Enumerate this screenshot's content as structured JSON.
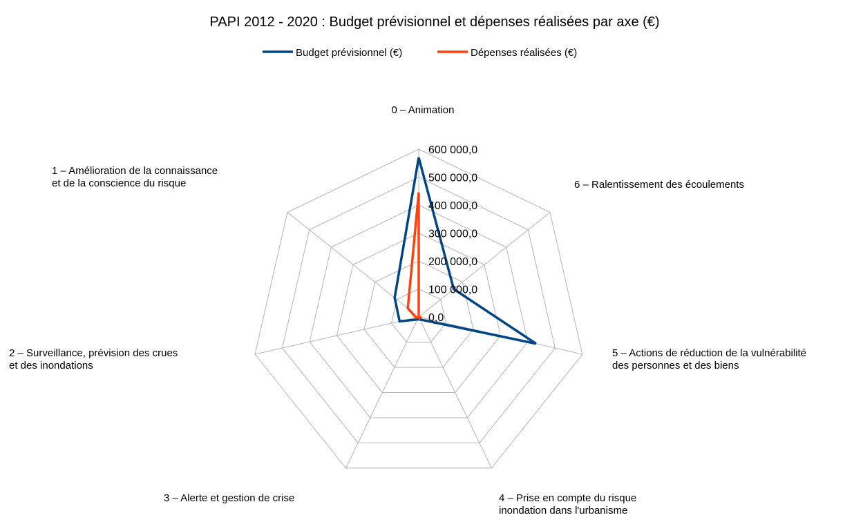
{
  "chart_data": {
    "type": "radar",
    "title": "PAPI 2012 - 2020 : Budget prévisionnel et dépenses réalisées par axe (€)",
    "legend_position": "top",
    "grid": true,
    "rlim": [
      0,
      600000
    ],
    "ticks": [
      {
        "value": 0,
        "label": "0,0"
      },
      {
        "value": 100000,
        "label": "100 000,0"
      },
      {
        "value": 200000,
        "label": "200 000,0"
      },
      {
        "value": 300000,
        "label": "300 000,0"
      },
      {
        "value": 400000,
        "label": "400 000,0"
      },
      {
        "value": 500000,
        "label": "500 000,0"
      },
      {
        "value": 600000,
        "label": "600 000,0"
      }
    ],
    "categories": [
      {
        "lines": [
          "0 – Animation"
        ]
      },
      {
        "lines": [
          "6 – Ralentissement des écoulements"
        ]
      },
      {
        "lines": [
          "5 – Actions de réduction de la vulnérabilité",
          "des personnes et des biens"
        ]
      },
      {
        "lines": [
          "4 – Prise en compte du risque",
          "inondation dans l'urbanisme"
        ]
      },
      {
        "lines": [
          "3 – Alerte et gestion de crise"
        ]
      },
      {
        "lines": [
          "2 – Surveillance, prévision des crues",
          "et des inondations"
        ]
      },
      {
        "lines": [
          "1 – Amélioration de la connaissance",
          "et de la conscience du risque"
        ]
      }
    ],
    "series": [
      {
        "name": "Budget prévisionnel (€)",
        "color": "#004586",
        "values": [
          570000,
          160000,
          430000,
          10000,
          10000,
          70000,
          110000
        ]
      },
      {
        "name": "Dépenses réalisées (€)",
        "color": "#ff420e",
        "values": [
          445000,
          0,
          5000,
          5000,
          0,
          10000,
          50000
        ]
      }
    ]
  }
}
